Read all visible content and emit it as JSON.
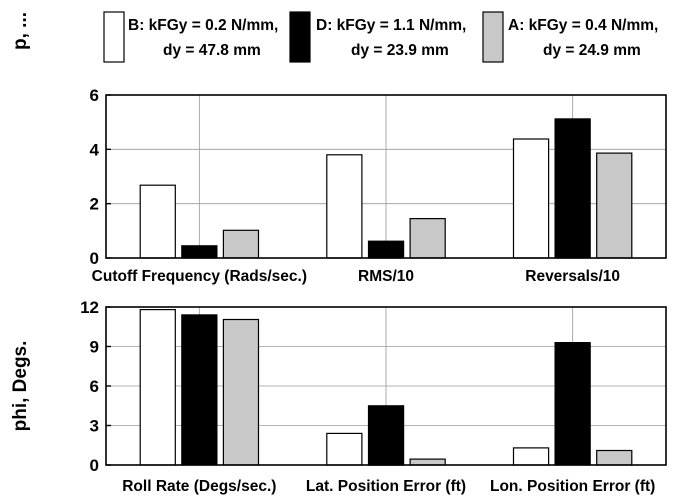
{
  "colors": {
    "B": "#ffffff",
    "D": "#000000",
    "A": "#c8c8c8",
    "edge": "#000000",
    "grid": "#9a9a9a"
  },
  "legend": [
    {
      "series": "B",
      "line1": "B: kFGy = 0.2 N/mm,",
      "line2": "dy = 47.8 mm"
    },
    {
      "series": "D",
      "line1": "D: kFGy = 1.1 N/mm,",
      "line2": "dy = 23.9 mm"
    },
    {
      "series": "A",
      "line1": "A: kFGy = 0.4 N/mm,",
      "line2": "dy = 24.9 mm"
    }
  ],
  "chart_data": [
    {
      "type": "bar",
      "ylabel": "p, ...",
      "ylim": [
        0,
        6
      ],
      "yticks": [
        0,
        2,
        4,
        6
      ],
      "grid": true,
      "categories": [
        "Cutoff Frequency (Rads/sec.)",
        "RMS/10",
        "Reversals/10"
      ],
      "series": [
        {
          "name": "B: kFGy = 0.2 N/mm, dy = 47.8 mm",
          "key": "B",
          "values": [
            2.68,
            3.8,
            4.38
          ]
        },
        {
          "name": "D: kFGy = 1.1 N/mm, dy = 23.9 mm",
          "key": "D",
          "values": [
            0.45,
            0.62,
            5.12
          ]
        },
        {
          "name": "A: kFGy = 0.4 N/mm, dy = 24.9 mm",
          "key": "A",
          "values": [
            1.02,
            1.45,
            3.86
          ]
        }
      ]
    },
    {
      "type": "bar",
      "ylabel": "phi, Degs.",
      "ylim": [
        0,
        12
      ],
      "yticks": [
        0,
        3,
        6,
        9,
        12
      ],
      "grid": true,
      "categories": [
        "Roll Rate (Degs/sec.)",
        "Lat. Position Error (ft)",
        "Lon. Position Error (ft)"
      ],
      "series": [
        {
          "name": "B: kFGy = 0.2 N/mm, dy = 47.8 mm",
          "key": "B",
          "values": [
            11.8,
            2.4,
            1.3
          ]
        },
        {
          "name": "D: kFGy = 1.1 N/mm, dy = 23.9 mm",
          "key": "D",
          "values": [
            11.4,
            4.5,
            9.3
          ]
        },
        {
          "name": "A: kFGy = 0.4 N/mm, dy = 24.9 mm",
          "key": "A",
          "values": [
            11.05,
            0.45,
            1.1
          ]
        }
      ]
    }
  ]
}
